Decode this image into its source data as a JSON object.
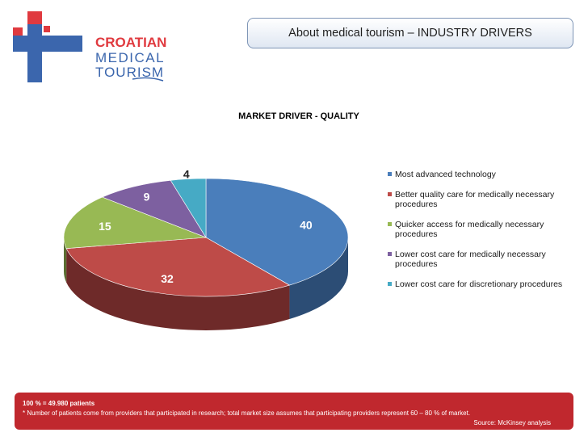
{
  "brand": {
    "line1": "CROATIAN",
    "line2": "MEDICAL",
    "line3": "TOURISM",
    "red": "#e03a3f",
    "blue": "#3b66ad"
  },
  "header": {
    "title": "About medical tourism – INDUSTRY DRIVERS"
  },
  "chart_data": {
    "type": "pie",
    "title": "MARKET DRIVER - QUALITY",
    "legend_position": "right",
    "categories": [
      "Most advanced technology",
      "Better quality care for medically necessary procedures",
      "Quicker access for medically necessary procedures",
      "Lower cost care for medically necessary procedures",
      "Lower cost care for discretionary procedures"
    ],
    "values": [
      40,
      32,
      15,
      9,
      4
    ],
    "data_labels": [
      "40",
      "32",
      "15",
      "9",
      "4"
    ],
    "colors": [
      "#4a7ebb",
      "#be4b48",
      "#98b954",
      "#7d60a0",
      "#46aac5"
    ],
    "dark_colors": [
      "#2c4d75",
      "#6e2a29",
      "#5a6e31",
      "#4a3a60",
      "#2a6475"
    ]
  },
  "footer": {
    "line1": "100 % = 49.980 patients",
    "line2": "* Number of patients come from  providers that participated in research; total market size assumes that participating providers represent 60 – 80 % of market.",
    "line3": "Source: McKinsey analysis"
  }
}
